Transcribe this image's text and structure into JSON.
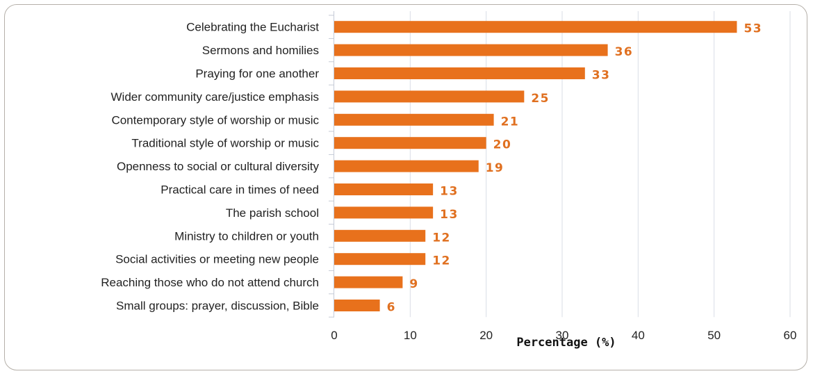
{
  "chart_data": {
    "type": "bar",
    "orientation": "horizontal",
    "categories": [
      "Celebrating the Eucharist",
      "Sermons and homilies",
      "Praying for one another",
      "Wider community care/justice emphasis",
      "Contemporary style of worship or music",
      "Traditional style of worship or music",
      "Openness to social or cultural diversity",
      "Practical care in times of need",
      "The parish school",
      "Ministry to children or youth",
      "Social activities or meeting new people",
      "Reaching those who do not attend church",
      "Small groups: prayer, discussion, Bible"
    ],
    "values": [
      53,
      36,
      33,
      25,
      21,
      20,
      19,
      13,
      13,
      12,
      12,
      9,
      6
    ],
    "value_labels": [
      "53",
      "36",
      "33",
      "25",
      "21",
      "20",
      "19",
      "13",
      "13",
      "12",
      "12",
      "9",
      "6"
    ],
    "xlabel": "Percentage (%)",
    "ylabel": "",
    "xlim": [
      0,
      60
    ],
    "xticks": [
      0,
      10,
      20,
      30,
      40,
      50,
      60
    ],
    "xtick_labels": [
      "0",
      "10",
      "20",
      "30",
      "40",
      "50",
      "60"
    ],
    "grid": "vertical",
    "legend": "none",
    "bar_color": "#e8711c",
    "value_label_color": "#e07020",
    "grid_color": "#d9dde6"
  }
}
